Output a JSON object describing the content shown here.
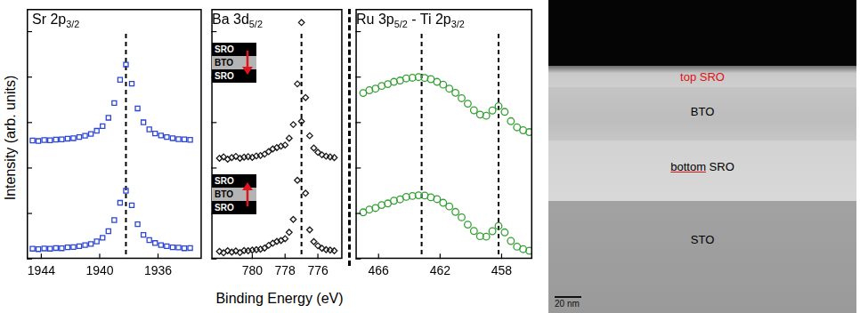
{
  "figure": {
    "xlabel": "Binding Energy (eV)",
    "ylabel": "Intensity (arb. units)"
  },
  "chart_data": [
    {
      "type": "scatter",
      "title": "Sr 2p3/2",
      "xlim": [
        1945,
        1933
      ],
      "xticks": [
        1944,
        1940,
        1936
      ],
      "ylim": [
        0,
        11
      ],
      "yticks": [
        0,
        2,
        4,
        6,
        8,
        10
      ],
      "tick_labels": "x",
      "grid": false,
      "reference_lines": [
        1938.2
      ],
      "x": [
        1944.6,
        1944.2,
        1943.8,
        1943.4,
        1943.0,
        1942.6,
        1942.2,
        1941.8,
        1941.4,
        1941.0,
        1940.6,
        1940.2,
        1939.8,
        1939.4,
        1939.0,
        1938.6,
        1938.2,
        1937.8,
        1937.4,
        1937.0,
        1936.6,
        1936.2,
        1935.8,
        1935.4,
        1935.0,
        1934.6,
        1934.2,
        1933.8
      ],
      "series": [
        {
          "color": "#2b45d6",
          "marker": "square",
          "values": [
            5.21,
            5.19,
            5.23,
            5.22,
            5.25,
            5.26,
            5.29,
            5.31,
            5.36,
            5.42,
            5.5,
            5.64,
            5.84,
            6.21,
            6.86,
            7.88,
            8.55,
            7.71,
            6.62,
            6.01,
            5.7,
            5.52,
            5.43,
            5.36,
            5.31,
            5.27,
            5.26,
            5.24
          ]
        },
        {
          "color": "#2b45d6",
          "marker": "square",
          "values": [
            0.45,
            0.43,
            0.46,
            0.45,
            0.48,
            0.47,
            0.51,
            0.52,
            0.56,
            0.61,
            0.66,
            0.77,
            0.93,
            1.22,
            1.71,
            2.47,
            3.0,
            2.36,
            1.53,
            1.06,
            0.83,
            0.7,
            0.61,
            0.56,
            0.51,
            0.5,
            0.47,
            0.48
          ]
        }
      ]
    },
    {
      "type": "scatter",
      "title": "Ba 3d5/2",
      "xlim": [
        782.5,
        774.5
      ],
      "xticks": [
        780,
        778,
        776
      ],
      "ylim": [
        0,
        11
      ],
      "yticks": [
        0,
        2,
        4,
        6,
        8,
        10
      ],
      "tick_labels": "x",
      "grid": false,
      "reference_lines": [
        777.0
      ],
      "x": [
        782.0,
        781.75,
        781.5,
        781.25,
        781.0,
        780.75,
        780.5,
        780.25,
        780.0,
        779.75,
        779.5,
        779.25,
        779.0,
        778.75,
        778.5,
        778.25,
        778.0,
        777.75,
        777.5,
        777.25,
        777.0,
        776.75,
        776.5,
        776.25,
        776.0,
        775.75,
        775.5,
        775.25,
        775.0
      ],
      "series": [
        {
          "color": "#1a1a1a",
          "marker": "diamond",
          "values": [
            4.43,
            4.49,
            4.39,
            4.46,
            4.51,
            4.43,
            4.48,
            4.5,
            4.47,
            4.53,
            4.55,
            4.61,
            4.72,
            4.84,
            4.9,
            4.96,
            5.01,
            5.31,
            5.91,
            7.7,
            10.4,
            7.1,
            5.42,
            4.88,
            4.69,
            4.58,
            4.52,
            4.49,
            4.46
          ]
        },
        {
          "color": "#1a1a1a",
          "marker": "diamond",
          "values": [
            0.33,
            0.27,
            0.36,
            0.3,
            0.35,
            0.28,
            0.37,
            0.36,
            0.39,
            0.41,
            0.43,
            0.48,
            0.6,
            0.69,
            0.77,
            0.81,
            0.89,
            1.17,
            1.74,
            3.46,
            6.05,
            2.89,
            1.28,
            0.76,
            0.58,
            0.47,
            0.41,
            0.39,
            0.36
          ]
        }
      ]
    },
    {
      "type": "scatter",
      "title": "Ru 3p5/2 - Ti 2p3/2",
      "xlim": [
        467.5,
        456
      ],
      "xticks": [
        466,
        462,
        458
      ],
      "ylim": [
        0,
        11
      ],
      "yticks": [
        0,
        2,
        4,
        6,
        8,
        10
      ],
      "tick_labels": "x",
      "grid": false,
      "reference_lines": [
        463.2,
        458.2
      ],
      "x": [
        467.0,
        466.6,
        466.2,
        465.8,
        465.4,
        465.0,
        464.6,
        464.2,
        463.8,
        463.4,
        463.0,
        462.6,
        462.2,
        461.8,
        461.4,
        461.0,
        460.6,
        460.2,
        459.8,
        459.4,
        459.0,
        458.6,
        458.2,
        457.8,
        457.4,
        457.0,
        456.6,
        456.2
      ],
      "series": [
        {
          "color": "#34a034",
          "marker": "circle",
          "values": [
            7.3,
            7.42,
            7.49,
            7.61,
            7.69,
            7.79,
            7.85,
            7.94,
            7.97,
            8.0,
            7.96,
            7.91,
            7.79,
            7.67,
            7.49,
            7.31,
            7.07,
            6.83,
            6.54,
            6.35,
            6.3,
            6.53,
            6.72,
            6.47,
            6.06,
            5.79,
            5.66,
            5.58
          ]
        },
        {
          "color": "#34a034",
          "marker": "circle",
          "values": [
            2.05,
            2.17,
            2.24,
            2.37,
            2.44,
            2.56,
            2.62,
            2.73,
            2.77,
            2.8,
            2.79,
            2.71,
            2.63,
            2.47,
            2.31,
            2.07,
            1.83,
            1.51,
            1.23,
            1.0,
            0.98,
            1.22,
            1.45,
            1.17,
            0.79,
            0.54,
            0.43,
            0.36
          ]
        }
      ]
    }
  ],
  "insets": [
    {
      "layers": [
        "SRO",
        "BTO",
        "SRO"
      ],
      "arrow": "down"
    },
    {
      "layers": [
        "SRO",
        "BTO",
        "SRO"
      ],
      "arrow": "up"
    }
  ],
  "micrograph": {
    "labels": [
      "top SRO",
      "BTO",
      "bottom SRO",
      "STO"
    ],
    "scale_bar": "20 nm"
  }
}
